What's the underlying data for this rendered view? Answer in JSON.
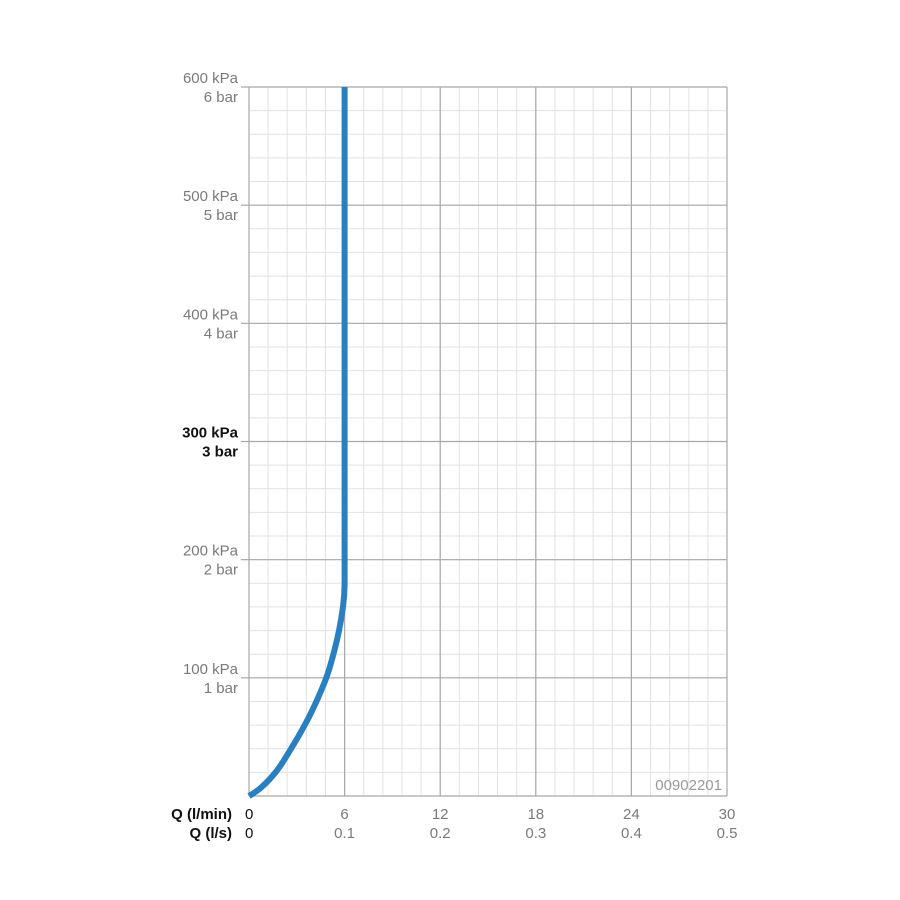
{
  "chart_data": {
    "type": "line",
    "x_axes": [
      {
        "label": "Q (l/min)",
        "ticks": [
          "0",
          "6",
          "12",
          "18",
          "24",
          "30"
        ],
        "range": [
          0,
          30
        ]
      },
      {
        "label": "Q (l/s)",
        "ticks": [
          "0",
          "0.1",
          "0.2",
          "0.3",
          "0.4",
          "0.5"
        ],
        "range": [
          0,
          0.5
        ]
      }
    ],
    "y_axis": {
      "range": [
        0,
        600
      ],
      "unit": "kPa",
      "ticks": [
        {
          "value": 100,
          "kpa": "100 kPa",
          "bar": "1 bar",
          "bold": false
        },
        {
          "value": 200,
          "kpa": "200 kPa",
          "bar": "2 bar",
          "bold": false
        },
        {
          "value": 300,
          "kpa": "300 kPa",
          "bar": "3 bar",
          "bold": true
        },
        {
          "value": 400,
          "kpa": "400 kPa",
          "bar": "4 bar",
          "bold": false
        },
        {
          "value": 500,
          "kpa": "500 kPa",
          "bar": "5 bar",
          "bold": false
        },
        {
          "value": 600,
          "kpa": "600 kPa",
          "bar": "6 bar",
          "bold": false
        }
      ]
    },
    "grid": true,
    "series": [
      {
        "color": "#2a7fc0",
        "x": [
          0,
          0.5,
          1,
          1.5,
          2,
          2.5,
          3,
          3.5,
          4,
          4.5,
          5,
          5.5,
          5.8,
          6.0,
          6.0,
          6.0,
          6.0,
          6.0
        ],
        "y": [
          0,
          4,
          10,
          17,
          26,
          37,
          48,
          60,
          73,
          88,
          105,
          130,
          150,
          170,
          190,
          300,
          450,
          600
        ]
      }
    ],
    "annotation": "00902201"
  },
  "colors": {
    "curve": "#2a7fc0",
    "grid_major": "#a8a8a8",
    "grid_minor": "#e2e2e2",
    "text": "#7a7a7a"
  }
}
